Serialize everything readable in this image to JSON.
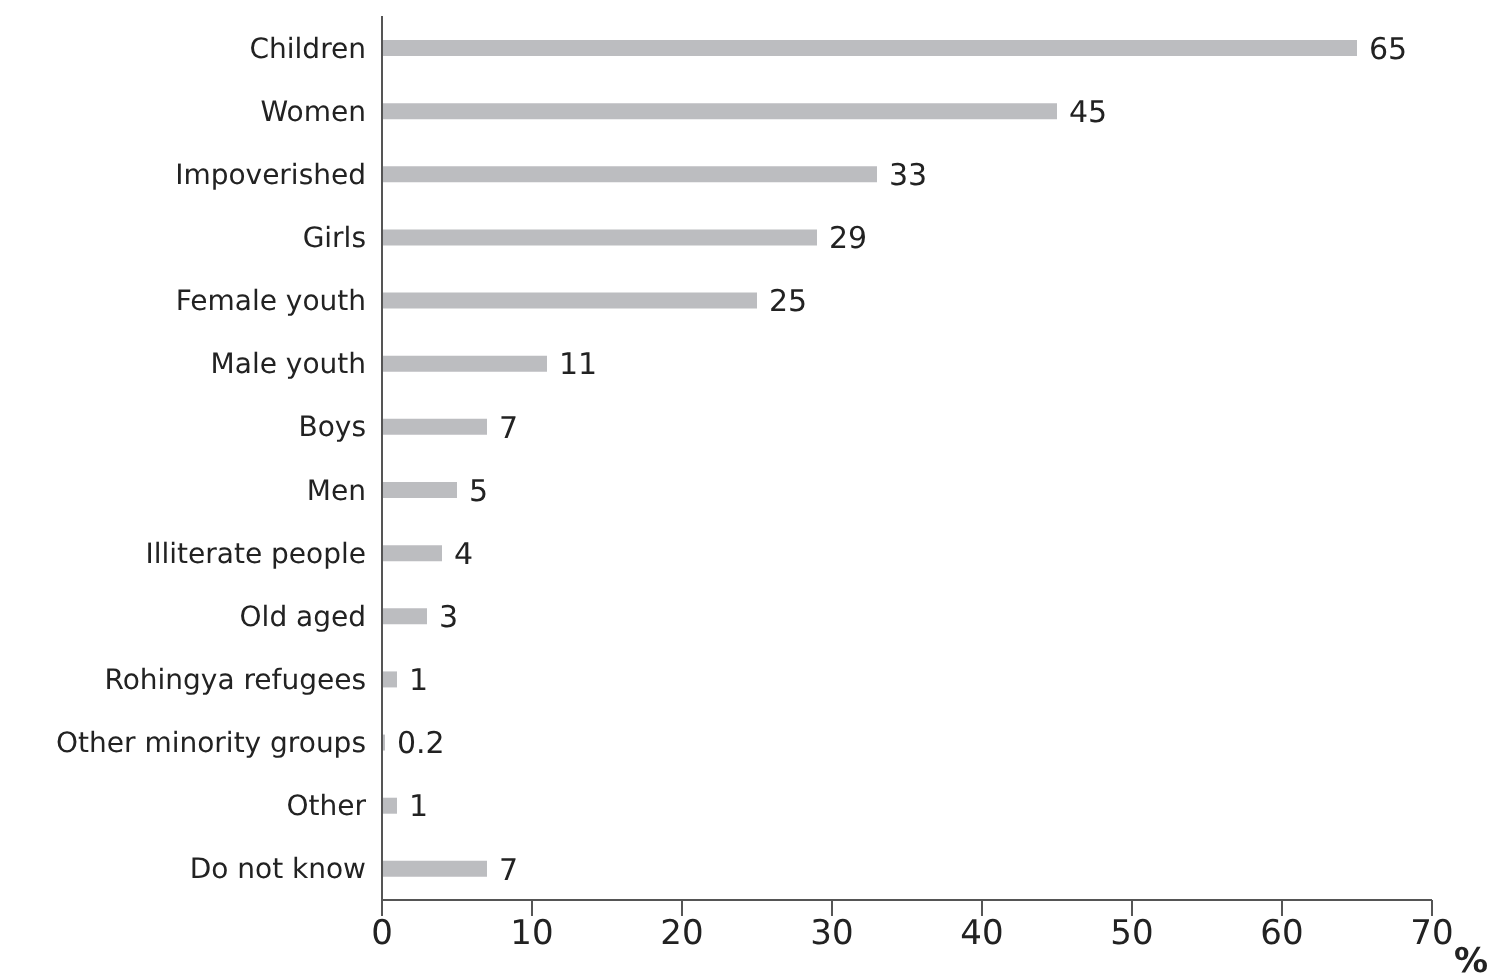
{
  "chart_data": {
    "type": "bar",
    "orientation": "horizontal",
    "xlabel": "%",
    "categories": [
      "Children",
      "Women",
      "Impoverished",
      "Girls",
      "Female youth",
      "Male youth",
      "Boys",
      "Men",
      "Illiterate people",
      "Old aged",
      "Rohingya refugees",
      "Other minority groups",
      "Other",
      "Do not know"
    ],
    "values": [
      65,
      45,
      33,
      29,
      25,
      11,
      7,
      5,
      4,
      3,
      1,
      0.2,
      1,
      7
    ],
    "color": "#bcbdc0",
    "data_labels": true,
    "grid": false,
    "legend": false,
    "xlim": [
      0,
      70
    ],
    "xticks": [
      0,
      10,
      20,
      30,
      40,
      50,
      60,
      70
    ]
  }
}
